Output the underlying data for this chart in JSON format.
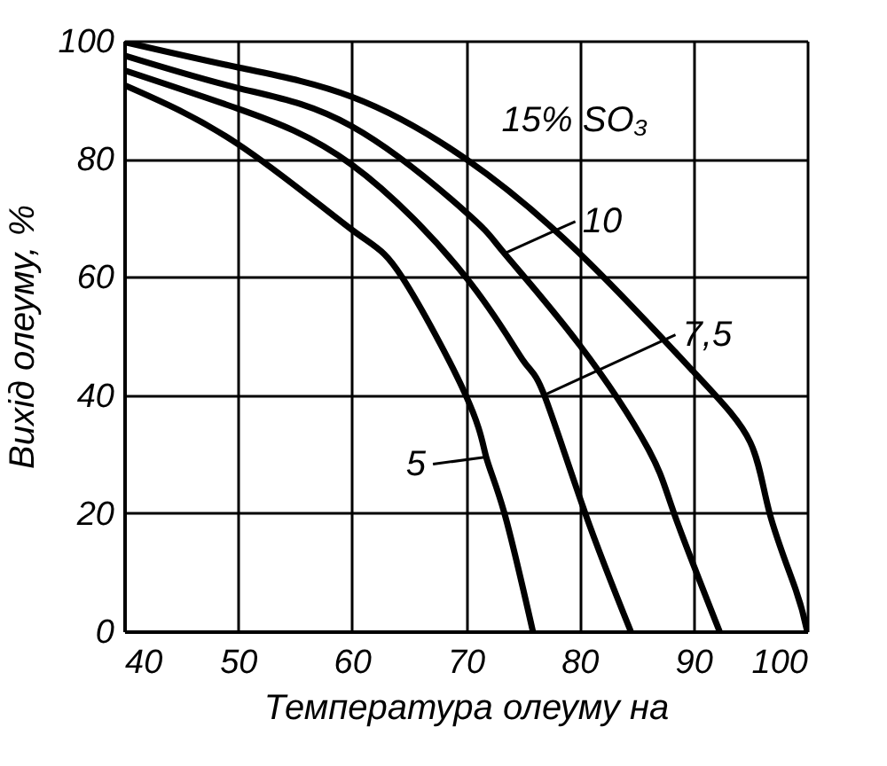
{
  "chart_data": {
    "type": "line",
    "xlabel": "Температура олеуму на",
    "ylabel": "Вихід олеуму, %",
    "xlim": [
      40,
      100
    ],
    "xticks": [
      40,
      50,
      60,
      70,
      80,
      90,
      100
    ],
    "ylim": [
      0,
      100
    ],
    "yticks": [
      0,
      20,
      40,
      60,
      80,
      100
    ],
    "grid": true,
    "legend": false,
    "marker": "none",
    "line_style": "solid",
    "series": [
      {
        "color": "#000000",
        "x": [
          40,
          50,
          60,
          70,
          80,
          90,
          95,
          96.7,
          99,
          100
        ],
        "values": [
          99.8,
          95.5,
          90.5,
          80,
          64,
          44,
          32,
          20,
          7,
          0
        ]
      },
      {
        "color": "#000000",
        "x": [
          40,
          50,
          60,
          70,
          73.4,
          80,
          86,
          88.3,
          92.3
        ],
        "values": [
          97.5,
          92,
          85.5,
          71,
          64,
          48.5,
          31,
          20,
          0
        ]
      },
      {
        "color": "#000000",
        "x": [
          40,
          50,
          60,
          70,
          75,
          76.9,
          80.5,
          84.5
        ],
        "values": [
          95,
          88.5,
          79,
          60,
          46,
          40,
          20,
          0
        ]
      },
      {
        "color": "#000000",
        "x": [
          40,
          50,
          60,
          64.4,
          70,
          71.8,
          73.4,
          75.9
        ],
        "values": [
          92.5,
          82.5,
          68,
          60,
          40,
          29.5,
          20,
          0
        ]
      }
    ],
    "annotations": [
      "15% SO₃",
      {
        "text": "10",
        "x": 73.4,
        "y": 64
      },
      {
        "text": "7,5",
        "x": 76.9,
        "y": 40
      },
      {
        "text": "5",
        "x": 71.8,
        "y": 29.5
      }
    ]
  }
}
